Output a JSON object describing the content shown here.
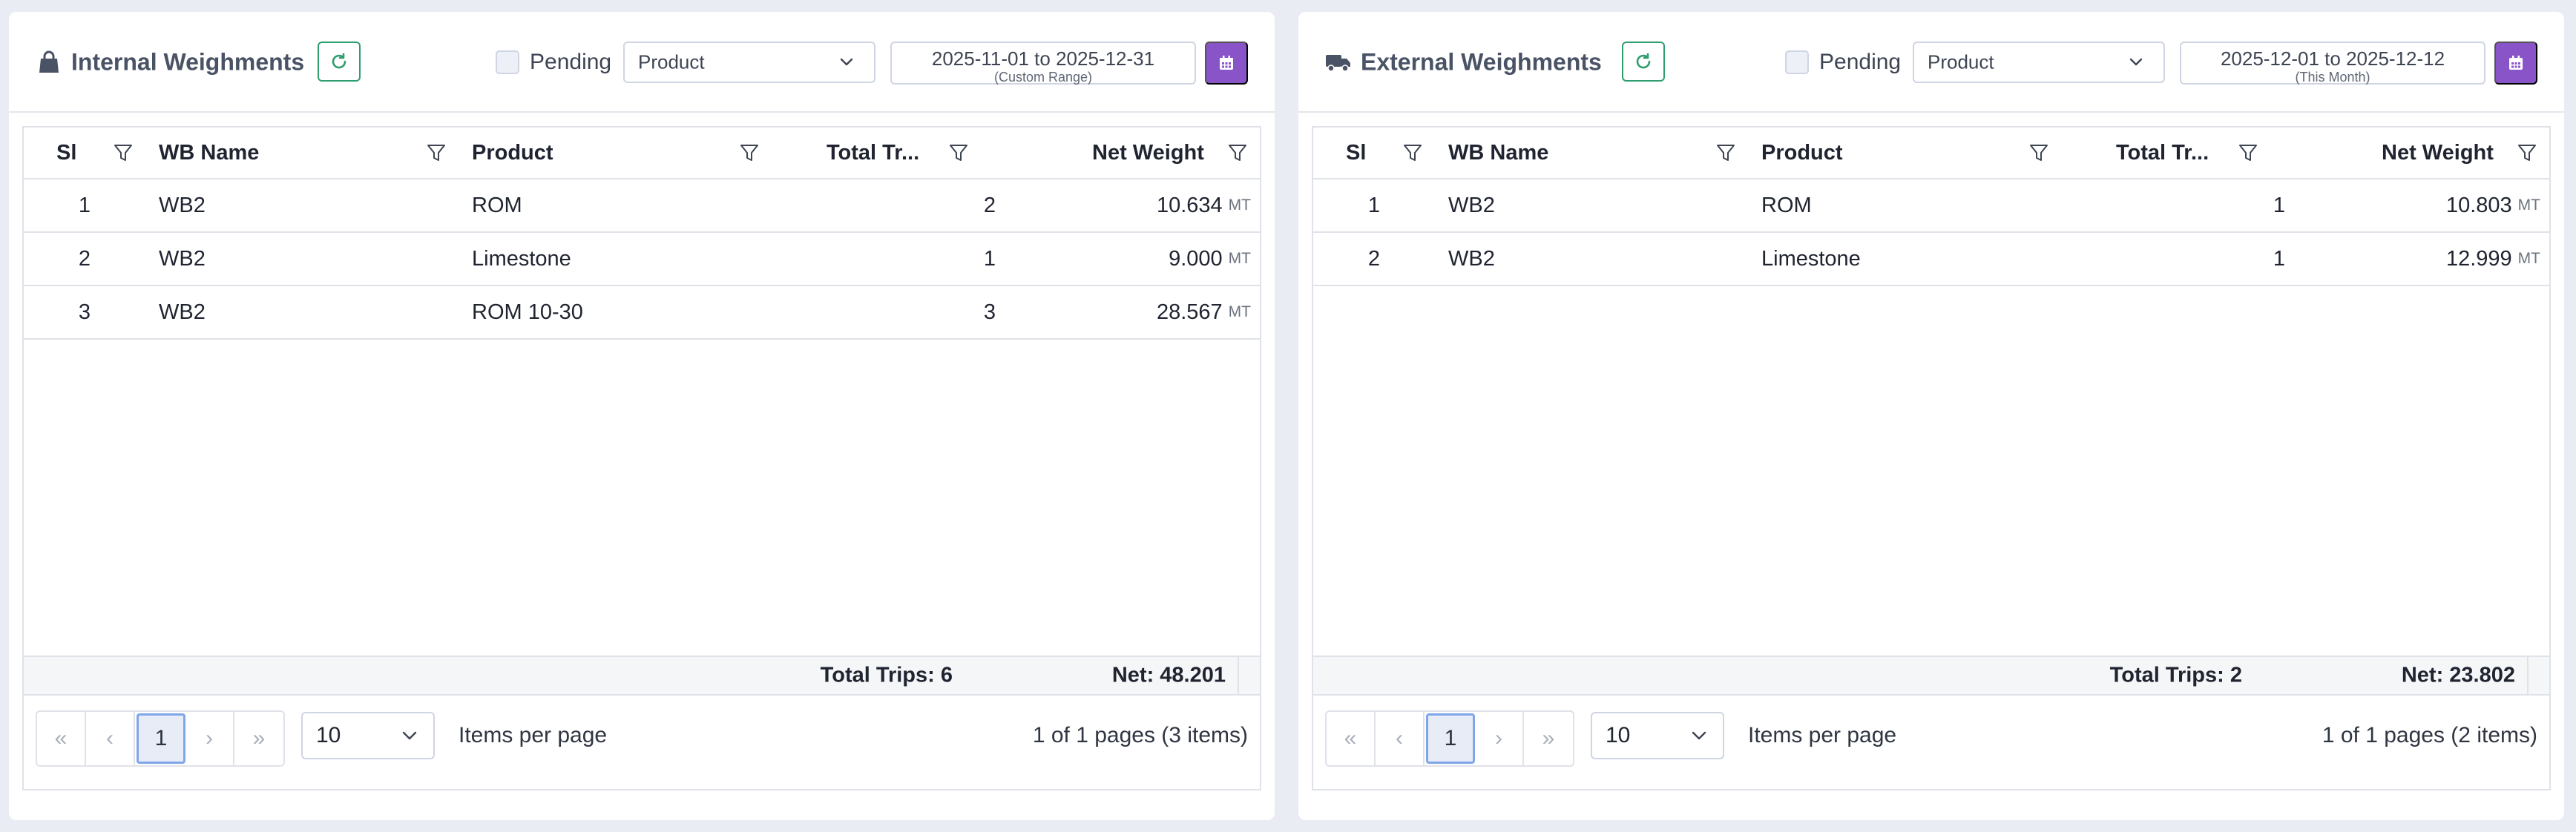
{
  "colors": {
    "accent_purple": "#8a54c9",
    "refresh_green": "#2f9e6e",
    "title_gray": "#495365",
    "page_background": "#e9ecf3"
  },
  "internal": {
    "title": "Internal Weighments",
    "title_icon": "bag-icon",
    "pending_label": "Pending",
    "pending_checked": false,
    "product_select": "Product",
    "date_range": "2025-11-01 to 2025-12-31",
    "date_range_note": "(Custom Range)",
    "columns": [
      "Sl",
      "WB Name",
      "Product",
      "Total Tr...",
      "Net Weight"
    ],
    "rows": [
      {
        "sl": "1",
        "wb": "WB2",
        "product": "ROM",
        "trips": "2",
        "net": "10.634",
        "unit": "MT"
      },
      {
        "sl": "2",
        "wb": "WB2",
        "product": "Limestone",
        "trips": "1",
        "net": "9.000",
        "unit": "MT"
      },
      {
        "sl": "3",
        "wb": "WB2",
        "product": "ROM 10-30",
        "trips": "3",
        "net": "28.567",
        "unit": "MT"
      }
    ],
    "total_trips": "Total Trips: 6",
    "net_total": "Net: 48.201",
    "pager": {
      "first": "«",
      "prev": "‹",
      "current": "1",
      "next": "›",
      "last": "»"
    },
    "page_size": "10",
    "items_per_page": "Items per page",
    "page_info": "1 of 1 pages (3 items)"
  },
  "external": {
    "title": "External Weighments",
    "title_icon": "truck-icon",
    "pending_label": "Pending",
    "pending_checked": false,
    "product_select": "Product",
    "date_range": "2025-12-01 to 2025-12-12",
    "date_range_note": "(This Month)",
    "columns": [
      "Sl",
      "WB Name",
      "Product",
      "Total Tr...",
      "Net Weight"
    ],
    "rows": [
      {
        "sl": "1",
        "wb": "WB2",
        "product": "ROM",
        "trips": "1",
        "net": "10.803",
        "unit": "MT"
      },
      {
        "sl": "2",
        "wb": "WB2",
        "product": "Limestone",
        "trips": "1",
        "net": "12.999",
        "unit": "MT"
      }
    ],
    "total_trips": "Total Trips: 2",
    "net_total": "Net: 23.802",
    "pager": {
      "first": "«",
      "prev": "‹",
      "current": "1",
      "next": "›",
      "last": "»"
    },
    "page_size": "10",
    "items_per_page": "Items per page",
    "page_info": "1 of 1 pages (2 items)"
  }
}
